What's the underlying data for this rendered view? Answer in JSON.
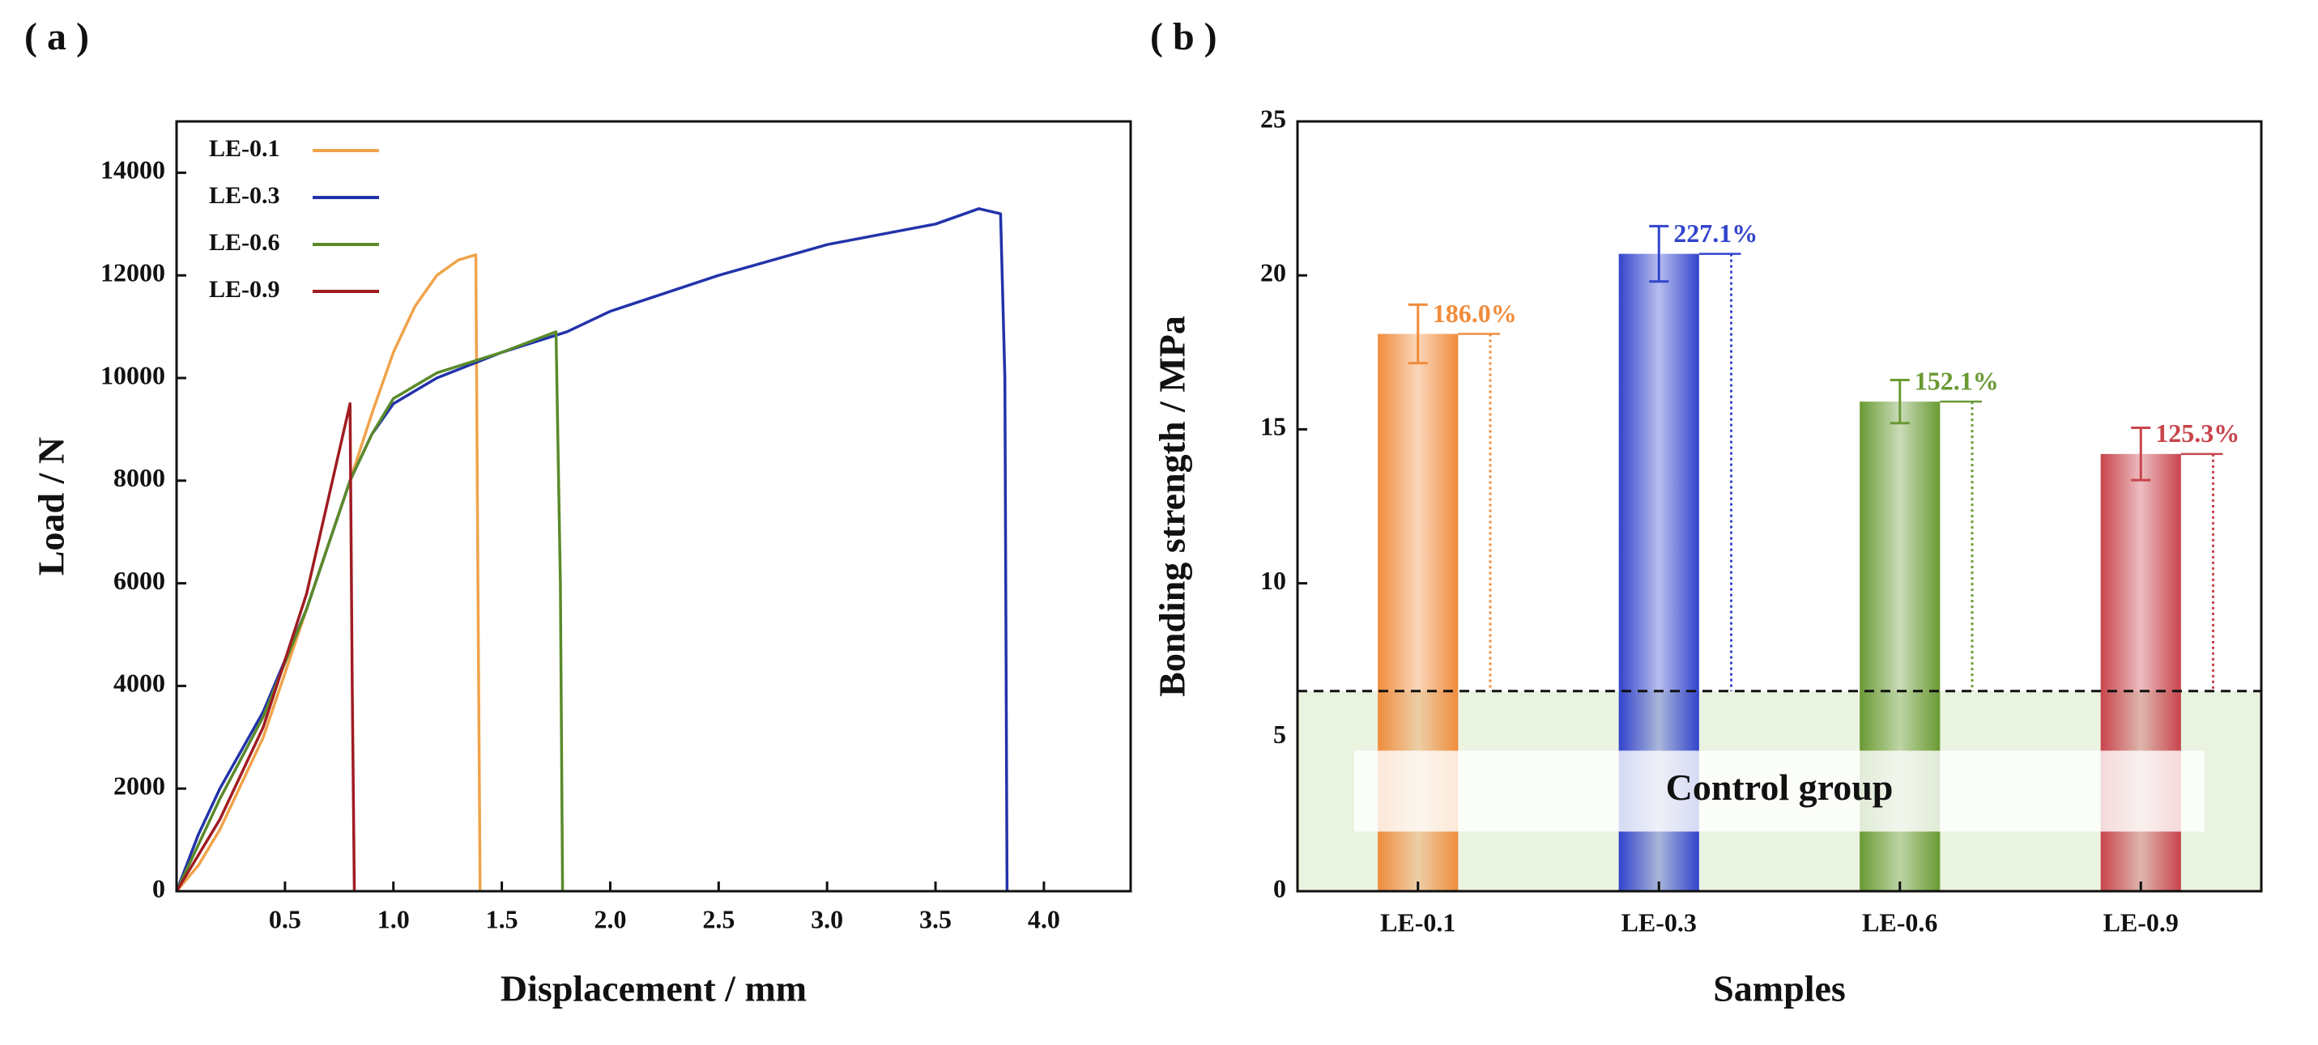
{
  "chart_data": [
    {
      "type": "line",
      "panel_label": "( a )",
      "x_label": "Displacement / mm",
      "y_label": "Load / N",
      "xlim": [
        0,
        4.4
      ],
      "xticks": [
        {
          "value": 0.5,
          "label": "0.5"
        },
        {
          "value": 1,
          "label": "1.0"
        },
        {
          "value": 1.5,
          "label": "1.5"
        },
        {
          "value": 2,
          "label": "2.0"
        },
        {
          "value": 2.5,
          "label": "2.5"
        },
        {
          "value": 3,
          "label": "3.0"
        },
        {
          "value": 3.5,
          "label": "3.5"
        },
        {
          "value": 4,
          "label": "4.0"
        }
      ],
      "ylim": [
        0,
        15000
      ],
      "yticks": [
        0,
        2000,
        4000,
        6000,
        8000,
        10000,
        12000,
        14000
      ],
      "legend": "upper-left",
      "series": [
        {
          "name": "LE-0.1",
          "color": "#f0a34a",
          "x": [
            0,
            0.1,
            0.2,
            0.4,
            0.6,
            0.8,
            0.9,
            1.0,
            1.1,
            1.2,
            1.3,
            1.38,
            1.39,
            1.4
          ],
          "values": [
            0,
            500,
            1200,
            3000,
            5500,
            8000,
            9300,
            10500,
            11400,
            12000,
            12300,
            12400,
            6000,
            0
          ]
        },
        {
          "name": "LE-0.3",
          "color": "#2233aa",
          "x": [
            0,
            0.1,
            0.2,
            0.4,
            0.6,
            0.8,
            0.9,
            1.0,
            1.2,
            1.5,
            1.8,
            2.0,
            2.5,
            3.0,
            3.5,
            3.7,
            3.8,
            3.82,
            3.83
          ],
          "values": [
            0,
            1100,
            2000,
            3500,
            5500,
            8000,
            8900,
            9500,
            10000,
            10500,
            10900,
            11300,
            12000,
            12600,
            13000,
            13300,
            13200,
            10000,
            0
          ]
        },
        {
          "name": "LE-0.6",
          "color": "#5a8a2a",
          "x": [
            0,
            0.1,
            0.2,
            0.4,
            0.6,
            0.8,
            0.9,
            1.0,
            1.2,
            1.5,
            1.75,
            1.77,
            1.78
          ],
          "values": [
            0,
            900,
            1800,
            3400,
            5500,
            8000,
            8900,
            9600,
            10100,
            10500,
            10900,
            6000,
            0
          ]
        },
        {
          "name": "LE-0.9",
          "color": "#a01c22",
          "x": [
            0,
            0.1,
            0.2,
            0.4,
            0.6,
            0.8,
            0.81,
            0.82
          ],
          "values": [
            0,
            700,
            1400,
            3200,
            5800,
            9500,
            4000,
            0
          ]
        }
      ]
    },
    {
      "type": "bar",
      "panel_label": "( b )",
      "x_label": "Samples",
      "y_label": "Bonding strength / MPa",
      "categories": [
        "LE-0.1",
        "LE-0.3",
        "LE-0.6",
        "LE-0.9"
      ],
      "values": [
        18.1,
        20.7,
        15.9,
        14.2
      ],
      "errors": [
        0.95,
        0.9,
        0.7,
        0.85
      ],
      "colors": [
        "#f08c3c",
        "#3344cc",
        "#6a9a34",
        "#c8444c"
      ],
      "percent_labels": [
        "186.0%",
        "227.1%",
        "152.1%",
        "125.3%"
      ],
      "control_value": 6.5,
      "control_label": "Control group",
      "ylim": [
        0,
        25
      ],
      "yticks": [
        0,
        5,
        10,
        15,
        20,
        25
      ]
    }
  ]
}
